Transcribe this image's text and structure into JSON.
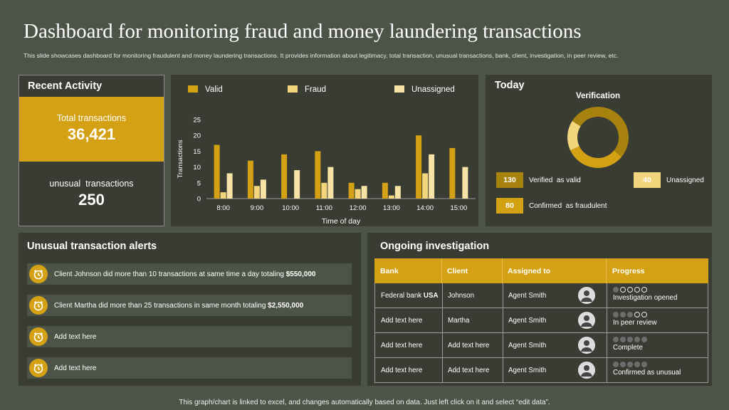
{
  "header": {
    "title": "Dashboard for monitoring fraud and money laundering transactions",
    "subtitle": "This slide showcases dashboard for monitoring fraudulent and money laundering transactions. It provides information about legitimacy, total transaction, unusual transactions, bank, client, investigation, in peer review, etc."
  },
  "recent": {
    "title": "Recent Activity",
    "total_label": "Total transactions",
    "total_value": "36,421",
    "unusual_label": "unusual  transactions",
    "unusual_value": "250"
  },
  "chart_data": {
    "type": "bar",
    "categories": [
      "8:00",
      "9:00",
      "10:00",
      "11:00",
      "12:00",
      "13:00",
      "14:00",
      "15:00"
    ],
    "series": [
      {
        "name": "Valid",
        "values": [
          17,
          12,
          14,
          15,
          5,
          5,
          20,
          16
        ]
      },
      {
        "name": "Fraud",
        "values": [
          2,
          4,
          0,
          5,
          3,
          1,
          8,
          0
        ]
      },
      {
        "name": "Unassigned",
        "values": [
          8,
          6,
          9,
          10,
          4,
          4,
          14,
          10
        ]
      }
    ],
    "xlabel": "Time of day",
    "ylabel": "Transactions",
    "ylim": [
      0,
      25
    ],
    "yticks": [
      "0",
      "5",
      "10",
      "15",
      "20",
      "25"
    ],
    "legend": "top",
    "colors": [
      "#d4a115",
      "#f3d57d",
      "#f7e3a6"
    ]
  },
  "today": {
    "title": "Today",
    "verification_title": "Verification",
    "verified_value": "130",
    "verified_label": "Verified  as valid",
    "unassigned_value": "40",
    "unassigned_label": "Unassigned",
    "fraud_value": "80",
    "fraud_label": "Confirmed  as fraudulent",
    "donut": {
      "valid": 130,
      "unassigned": 40,
      "fraud": 80
    },
    "colors": {
      "valid": "#a8820f",
      "unassigned": "#f3d57d",
      "fraud": "#d4a115"
    }
  },
  "alerts": {
    "title": "Unusual transaction alerts",
    "items": [
      {
        "text": "Client Johnson did more than 10 transactions at same time a day totaling ",
        "amount": "$550,000"
      },
      {
        "text": "Client Martha did more than 25 transactions in same month totaling ",
        "amount": "$2,550,000"
      },
      {
        "text": "Add text here",
        "amount": ""
      },
      {
        "text": "Add text here",
        "amount": ""
      }
    ],
    "icon": "alarm-clock-icon"
  },
  "investigation": {
    "title": "Ongoing investigation",
    "columns": [
      "Bank",
      "Client",
      "Assigned to",
      "Progress"
    ],
    "rows": [
      {
        "bank": "Federal bank",
        "bank_suffix": "USA",
        "client": "Johnson",
        "assigned": "Agent Smith",
        "progress": "Investigation opened",
        "filled": 1
      },
      {
        "bank": "Add text here",
        "bank_suffix": "",
        "client": "Martha",
        "assigned": "Agent Smith",
        "progress": "In peer review",
        "filled": 3
      },
      {
        "bank": "Add text here",
        "bank_suffix": "",
        "client": "Add text here",
        "assigned": "Agent Smith",
        "progress": "Complete",
        "filled": 5
      },
      {
        "bank": "Add text here",
        "bank_suffix": "",
        "client": "Add text here",
        "assigned": "Agent Smith",
        "progress": "Confirmed as unusual",
        "filled": 5
      }
    ]
  },
  "footer": "This graph/chart is linked to excel, and changes automatically based on data. Just left click on it and select “edit data”."
}
